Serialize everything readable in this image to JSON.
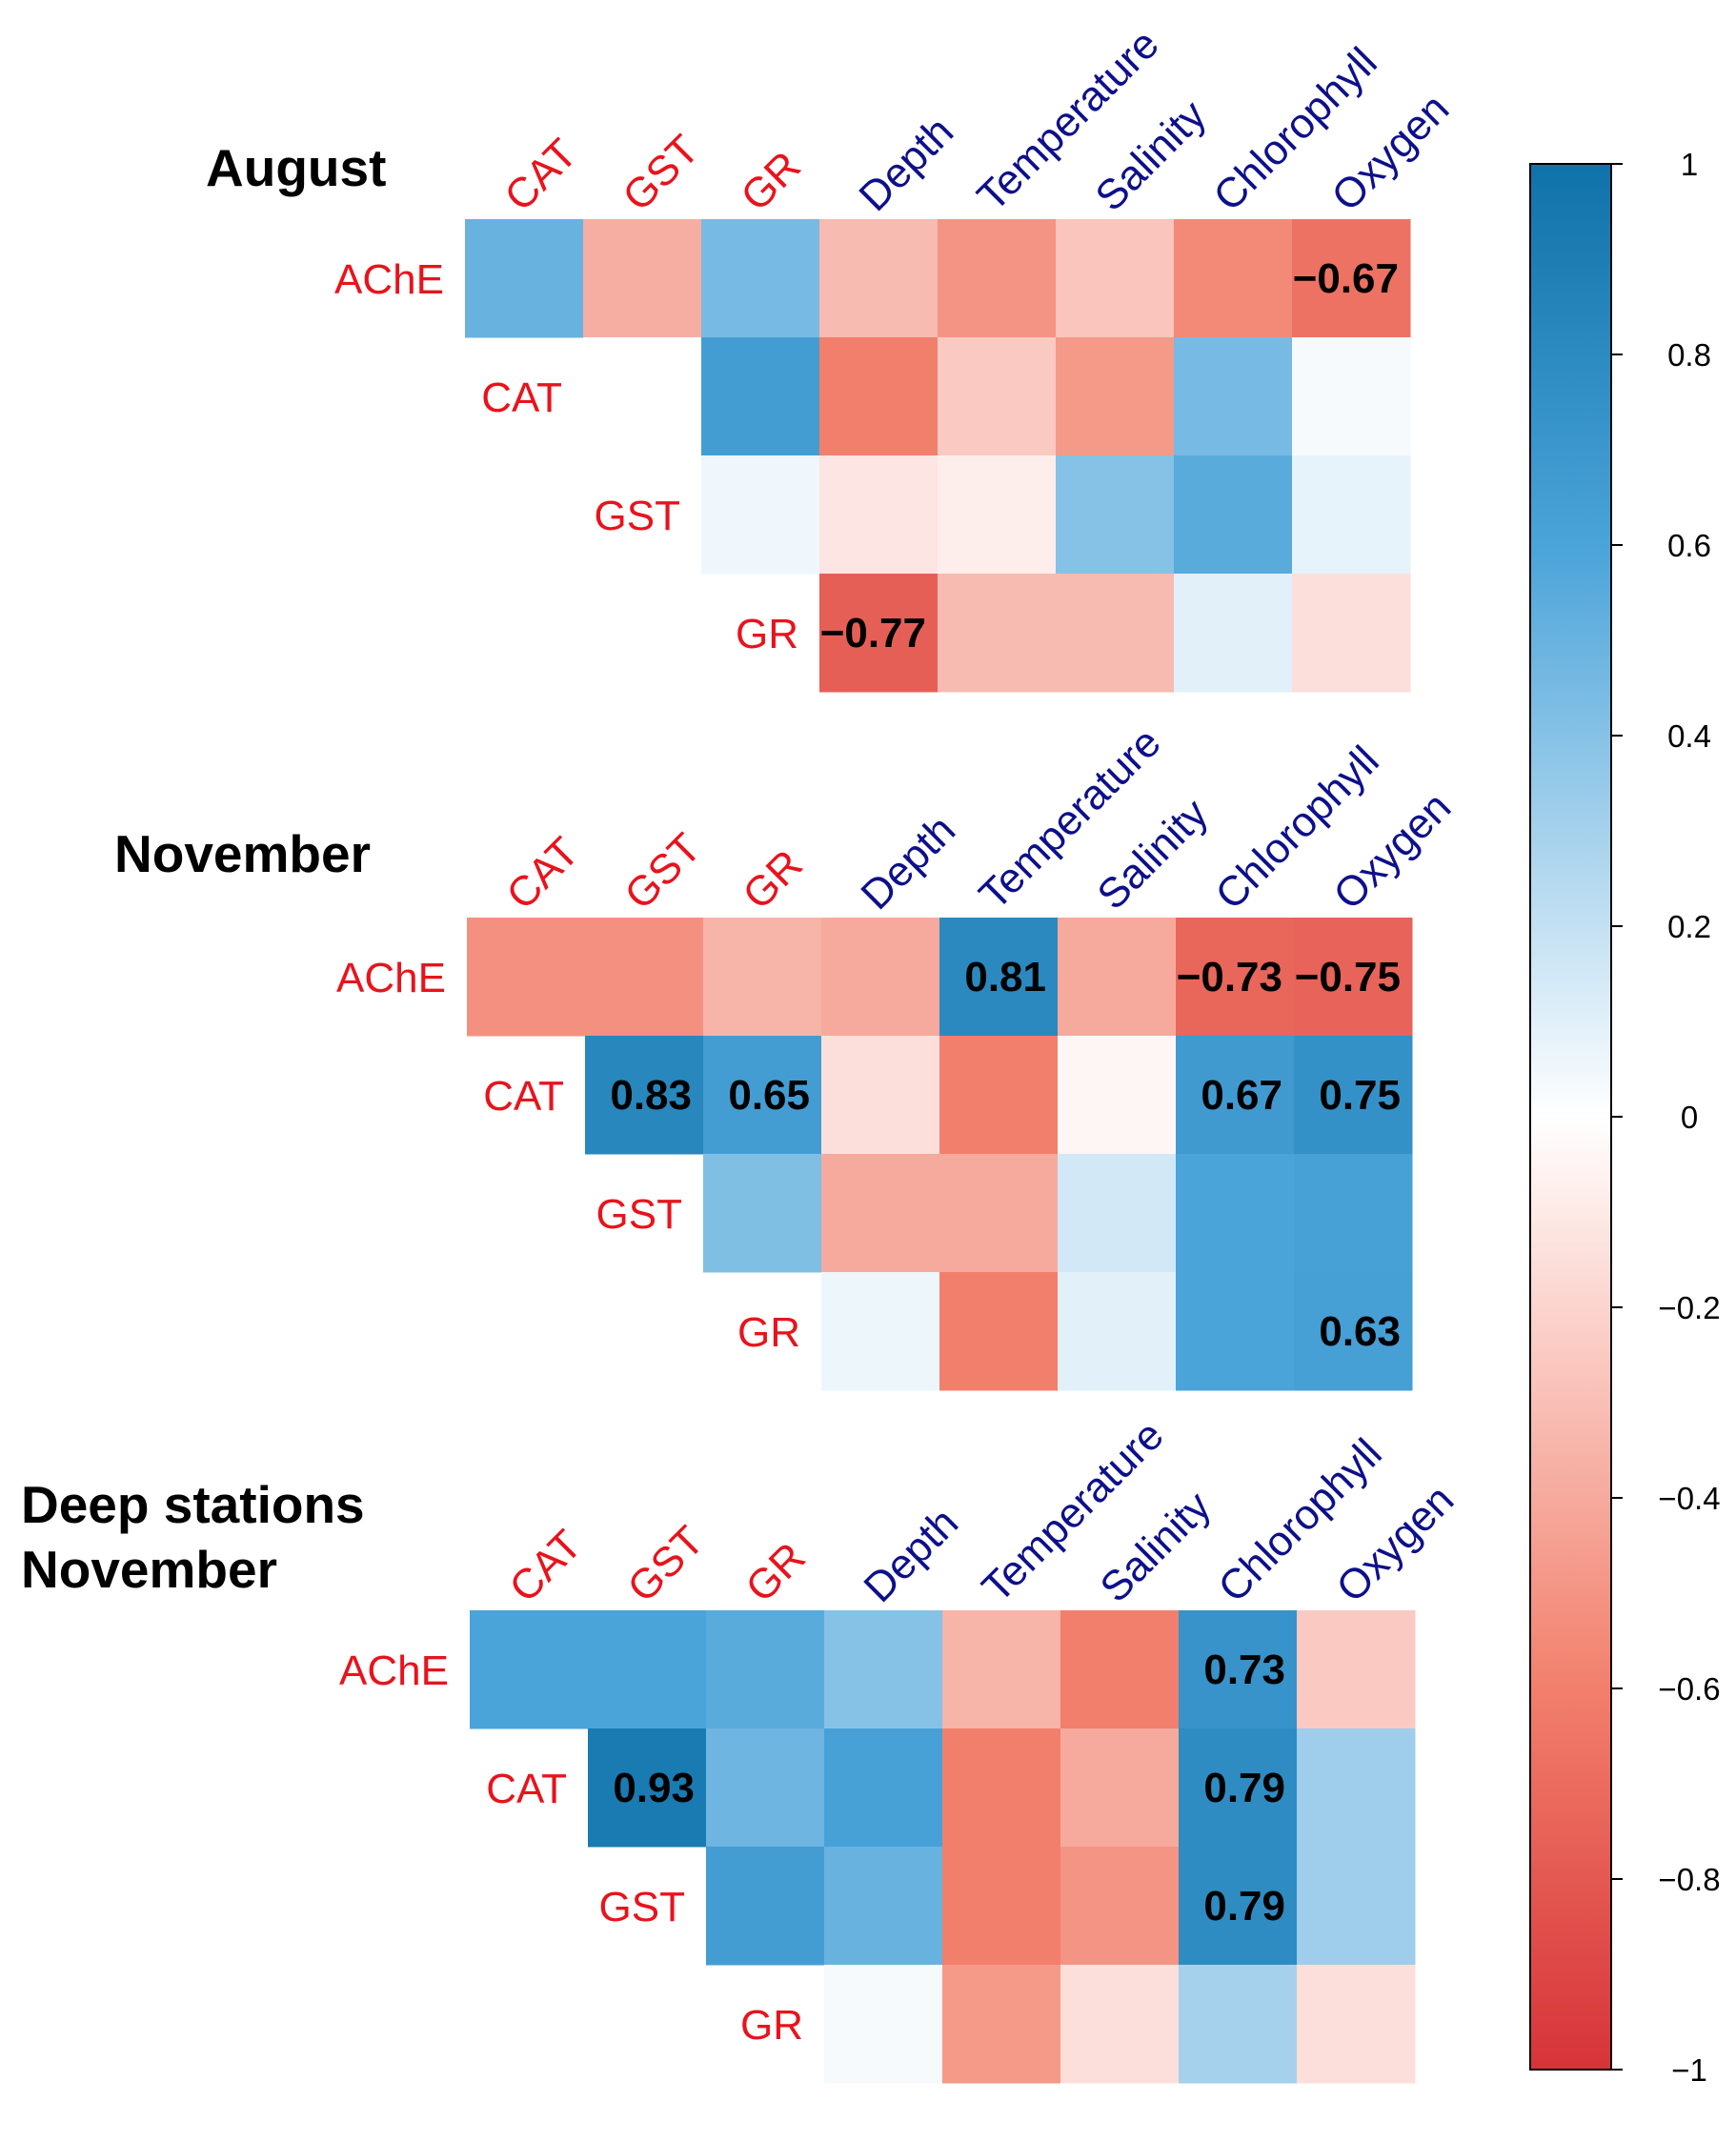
{
  "colors": {
    "negative": "#d63338",
    "neutral": "#ffffff",
    "positive": "#0f72a8",
    "enzyme_label": "#e8131c",
    "environment_label": "#0d108a",
    "stop_negative": "#f27f6c",
    "stop_positive": "#4aa3d9"
  },
  "chart_data": [
    {
      "type": "heatmap",
      "title": "August",
      "rows": [
        "AChE",
        "CAT",
        "GST",
        "GR"
      ],
      "columns": [
        "CAT",
        "GST",
        "GR",
        "Depth",
        "Temperature",
        "Salinity",
        "Chlorophyll",
        "Oxygen"
      ],
      "enzyme_columns": [
        "CAT",
        "GST",
        "GR"
      ],
      "environment_columns": [
        "Depth",
        "Temperature",
        "Salinity",
        "Chlorophyll",
        "Oxygen"
      ],
      "values": [
        [
          0.5,
          -0.38,
          0.45,
          -0.32,
          -0.5,
          -0.27,
          -0.55,
          -0.67
        ],
        [
          null,
          0.0,
          0.65,
          -0.6,
          -0.25,
          -0.48,
          0.45,
          0.03
        ],
        [
          null,
          null,
          0.05,
          -0.12,
          -0.08,
          0.4,
          0.55,
          0.08
        ],
        [
          null,
          null,
          null,
          -0.77,
          -0.32,
          -0.32,
          0.1,
          -0.15
        ]
      ],
      "labels": [
        [
          null,
          null,
          null,
          null,
          null,
          null,
          null,
          "−0.67"
        ],
        [
          null,
          null,
          null,
          null,
          null,
          null,
          null,
          null
        ],
        [
          null,
          null,
          null,
          null,
          null,
          null,
          null,
          null
        ],
        [
          null,
          null,
          null,
          "−0.77",
          null,
          null,
          null,
          null
        ]
      ]
    },
    {
      "type": "heatmap",
      "title": "November",
      "rows": [
        "AChE",
        "CAT",
        "GST",
        "GR"
      ],
      "columns": [
        "CAT",
        "GST",
        "GR",
        "Depth",
        "Temperature",
        "Salinity",
        "Chlorophyll",
        "Oxygen"
      ],
      "enzyme_columns": [
        "CAT",
        "GST",
        "GR"
      ],
      "environment_columns": [
        "Depth",
        "Temperature",
        "Salinity",
        "Chlorophyll",
        "Oxygen"
      ],
      "values": [
        [
          -0.52,
          -0.52,
          -0.35,
          -0.4,
          0.81,
          -0.4,
          -0.73,
          -0.75
        ],
        [
          null,
          0.83,
          0.65,
          -0.15,
          -0.6,
          -0.04,
          0.67,
          0.75
        ],
        [
          null,
          null,
          0.42,
          -0.4,
          -0.4,
          0.15,
          0.6,
          0.62
        ],
        [
          null,
          null,
          null,
          0.06,
          -0.6,
          0.1,
          0.6,
          0.63
        ]
      ],
      "labels": [
        [
          null,
          null,
          null,
          null,
          "0.81",
          null,
          "−0.73",
          "−0.75"
        ],
        [
          null,
          "0.83",
          "0.65",
          null,
          null,
          null,
          "0.67",
          "0.75"
        ],
        [
          null,
          null,
          null,
          null,
          null,
          null,
          null,
          null
        ],
        [
          null,
          null,
          null,
          null,
          null,
          null,
          null,
          "0.63"
        ]
      ]
    },
    {
      "type": "heatmap",
      "title": [
        "Deep stations",
        "November"
      ],
      "rows": [
        "AChE",
        "CAT",
        "GST",
        "GR"
      ],
      "columns": [
        "CAT",
        "GST",
        "GR",
        "Depth",
        "Temperature",
        "Salinity",
        "Chlorophyll",
        "Oxygen"
      ],
      "enzyme_columns": [
        "CAT",
        "GST",
        "GR"
      ],
      "environment_columns": [
        "Depth",
        "Temperature",
        "Salinity",
        "Chlorophyll",
        "Oxygen"
      ],
      "values": [
        [
          0.6,
          0.6,
          0.55,
          0.4,
          -0.35,
          -0.6,
          0.73,
          -0.25
        ],
        [
          null,
          0.93,
          0.48,
          0.62,
          -0.6,
          -0.4,
          0.79,
          0.32
        ],
        [
          null,
          null,
          0.65,
          0.5,
          -0.6,
          -0.5,
          0.79,
          0.32
        ],
        [
          null,
          null,
          null,
          0.03,
          -0.48,
          -0.15,
          0.3,
          -0.15
        ]
      ],
      "labels": [
        [
          null,
          null,
          null,
          null,
          null,
          null,
          "0.73",
          null
        ],
        [
          null,
          "0.93",
          null,
          null,
          null,
          null,
          "0.79",
          null
        ],
        [
          null,
          null,
          null,
          null,
          null,
          null,
          "0.79",
          null
        ],
        [
          null,
          null,
          null,
          null,
          null,
          null,
          null,
          null
        ]
      ]
    }
  ],
  "colorbar": {
    "range": [
      -1,
      1
    ],
    "ticks": [
      {
        "value": 1,
        "label": "1"
      },
      {
        "value": 0.8,
        "label": "0.8"
      },
      {
        "value": 0.6,
        "label": "0.6"
      },
      {
        "value": 0.4,
        "label": "0.4"
      },
      {
        "value": 0.2,
        "label": "0.2"
      },
      {
        "value": 0,
        "label": "0"
      },
      {
        "value": -0.2,
        "label": "−0.2"
      },
      {
        "value": -0.4,
        "label": "−0.4"
      },
      {
        "value": -0.6,
        "label": "−0.6"
      },
      {
        "value": -0.8,
        "label": "−0.8"
      },
      {
        "value": -1,
        "label": "−1"
      }
    ]
  }
}
